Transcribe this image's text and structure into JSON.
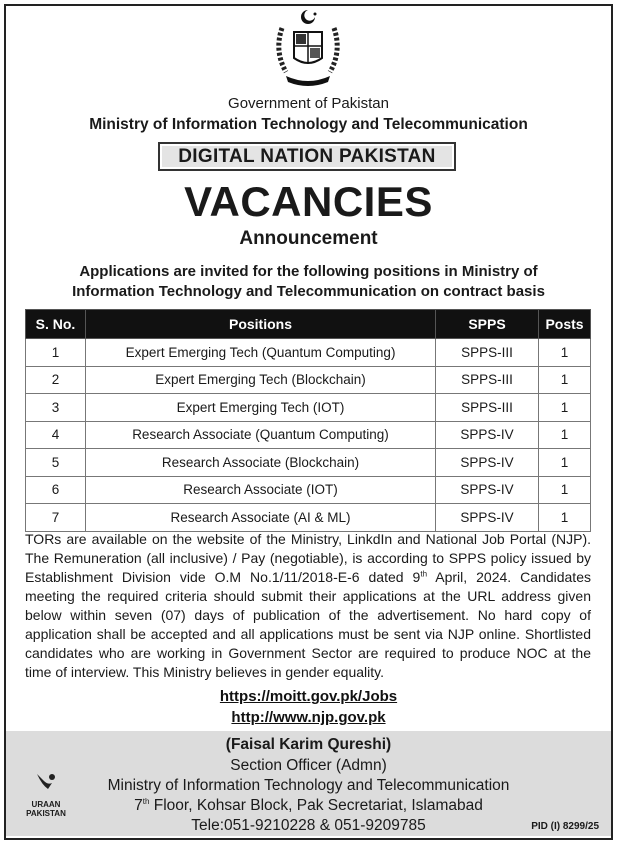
{
  "header": {
    "government": "Government of Pakistan",
    "ministry": "Ministry of Information Technology and Telecommunication",
    "banner": "DIGITAL NATION PAKISTAN",
    "title": "VACANCIES",
    "subtitle": "Announcement",
    "intro_line1": "Applications are invited for the following positions in Ministry of",
    "intro_line2": "Information Technology and Telecommunication on contract basis"
  },
  "table": {
    "headers": [
      "S. No.",
      "Positions",
      "SPPS",
      "Posts"
    ],
    "rows": [
      [
        "1",
        "Expert Emerging Tech (Quantum Computing)",
        "SPPS-III",
        "1"
      ],
      [
        "2",
        "Expert Emerging Tech (Blockchain)",
        "SPPS-III",
        "1"
      ],
      [
        "3",
        "Expert Emerging Tech (IOT)",
        "SPPS-III",
        "1"
      ],
      [
        "4",
        "Research Associate (Quantum Computing)",
        "SPPS-IV",
        "1"
      ],
      [
        "5",
        "Research Associate (Blockchain)",
        "SPPS-IV",
        "1"
      ],
      [
        "6",
        "Research Associate (IOT)",
        "SPPS-IV",
        "1"
      ],
      [
        "7",
        "Research Associate (AI & ML)",
        "SPPS-IV",
        "1"
      ]
    ]
  },
  "body": {
    "part1": "TORs are available on the website of the Ministry, LinkdIn and National Job Portal (NJP). The Remuneration (all inclusive) / Pay (negotiable), is according to SPPS policy issued by Establishment Division vide O.M No.1/11/2018-E-6 dated 9",
    "sup1": "th",
    "part2": " April, 2024. Candidates meeting the required criteria should submit their applications at the URL address given below within seven (07) days of publication of the advertisement. No hard copy of application shall be accepted and all applications must be sent via NJP online. Shortlisted candidates who are working in Government Sector are required to produce NOC at the time of interview. This Ministry believes in gender equality.",
    "url1": "https://moitt.gov.pk/Jobs",
    "url2": "http://www.njp.gov.pk"
  },
  "footer": {
    "name": "(Faisal Karim Qureshi)",
    "designation": "Section Officer (Admn)",
    "ministry": "Ministry of Information Technology and Telecommunication",
    "address_pre": "7",
    "address_sup": "th",
    "address_post": " Floor, Kohsar Block, Pak Secretariat, Islamabad",
    "phone": "Tele:051-9210228 & 051-9209785",
    "pid": "PID (I) 8299/25",
    "logo_text1": "URAAN",
    "logo_text2": "PAKISTAN"
  }
}
